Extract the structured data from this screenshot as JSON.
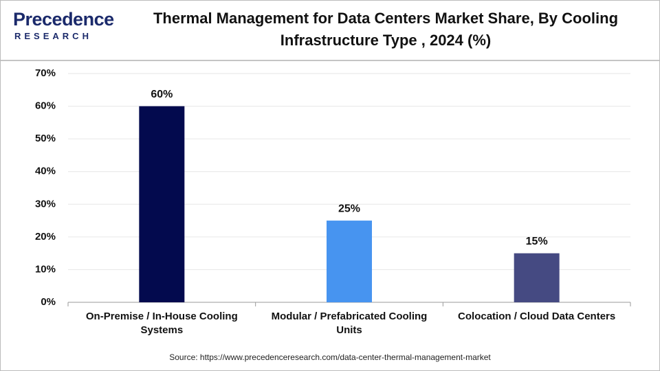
{
  "logo": {
    "name": "Precedence",
    "sub": "RESEARCH"
  },
  "source": "Source: https://www.precedenceresearch.com/data-center-thermal-management-market",
  "chart_data": {
    "type": "bar",
    "title": "Thermal Management for Data Centers Market Share, By Cooling Infrastructure Type , 2024 (%)",
    "categories": [
      "On-Premise / In-House Cooling Systems",
      "Modular / Prefabricated Cooling Units",
      "Colocation / Cloud Data Centers"
    ],
    "values": [
      60,
      25,
      15
    ],
    "value_labels": [
      "60%",
      "25%",
      "15%"
    ],
    "colors": [
      "#030a4e",
      "#4794f0",
      "#454a82"
    ],
    "ylim": [
      0,
      70
    ],
    "yticks": [
      {
        "value": 0,
        "label": "0%"
      },
      {
        "value": 10,
        "label": "10%"
      },
      {
        "value": 20,
        "label": "20%"
      },
      {
        "value": 30,
        "label": "30%"
      },
      {
        "value": 40,
        "label": "40%"
      },
      {
        "value": 50,
        "label": "50%"
      },
      {
        "value": 60,
        "label": "60%"
      },
      {
        "value": 70,
        "label": "70%"
      }
    ],
    "grid": true
  }
}
